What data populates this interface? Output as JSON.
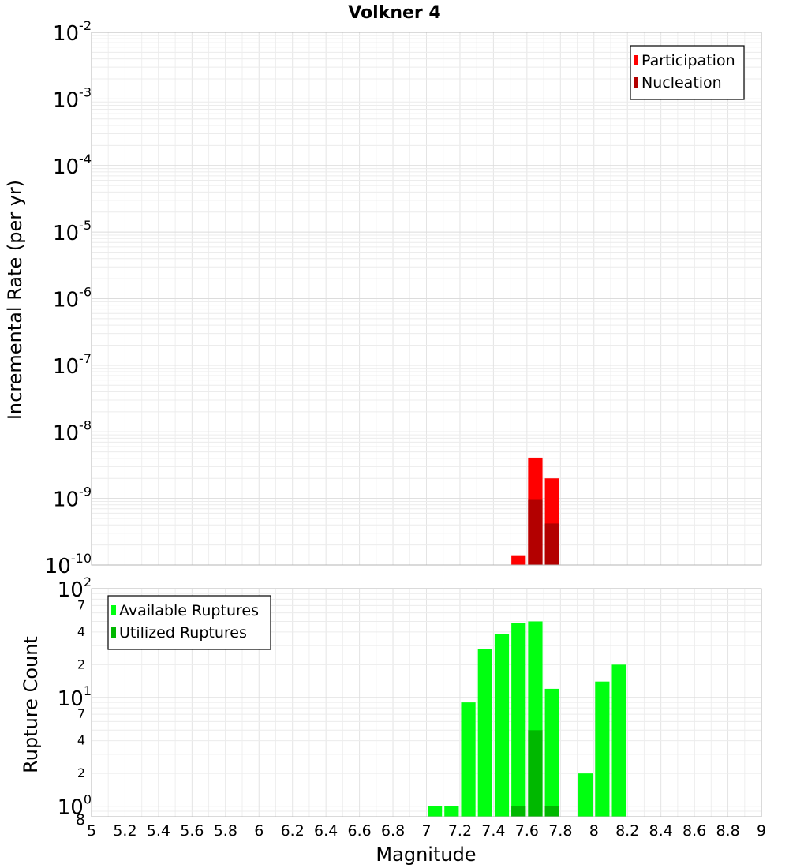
{
  "chart_data": [
    {
      "type": "bar",
      "title": "Volkner 4",
      "ylabel": "Incremental Rate (per yr)",
      "yscale": "log",
      "ylim": [
        1e-10,
        0.01
      ],
      "xlim": [
        5,
        9
      ],
      "bar_width": 0.1,
      "grid": true,
      "legend_position": "top-right",
      "y_ticks": [
        {
          "base": "10",
          "exp": "-10",
          "value": 1e-10
        },
        {
          "base": "10",
          "exp": "-9",
          "value": 1e-09
        },
        {
          "base": "10",
          "exp": "-8",
          "value": 1e-08
        },
        {
          "base": "10",
          "exp": "-7",
          "value": 1e-07
        },
        {
          "base": "10",
          "exp": "-6",
          "value": 1e-06
        },
        {
          "base": "10",
          "exp": "-5",
          "value": 1e-05
        },
        {
          "base": "10",
          "exp": "-4",
          "value": 0.0001
        },
        {
          "base": "10",
          "exp": "-3",
          "value": 0.001
        },
        {
          "base": "10",
          "exp": "-2",
          "value": 0.01
        }
      ],
      "series": [
        {
          "name": "Participation",
          "color": "#ff0000",
          "x": [
            7.55,
            7.65,
            7.75
          ],
          "values": [
            1.4e-10,
            4.1e-09,
            2e-09
          ]
        },
        {
          "name": "Nucleation",
          "color": "#b30000",
          "x": [
            7.65,
            7.75
          ],
          "values": [
            9.5e-10,
            4.2e-10
          ]
        }
      ]
    },
    {
      "type": "bar",
      "xlabel": "Magnitude",
      "ylabel": "Rupture Count",
      "yscale": "log",
      "ylim": [
        0.8,
        100
      ],
      "xlim": [
        5,
        9
      ],
      "bar_width": 0.1,
      "grid": true,
      "legend_position": "top-left",
      "x_tick_labels": [
        "5",
        "5.2",
        "5.4",
        "5.6",
        "5.8",
        "6",
        "6.2",
        "6.4",
        "6.6",
        "6.8",
        "7",
        "7.2",
        "7.4",
        "7.6",
        "7.8",
        "8",
        "8.2",
        "8.4",
        "8.6",
        "8.8",
        "9"
      ],
      "y_major_ticks": [
        {
          "base": "10",
          "exp": "0",
          "value": 1
        },
        {
          "base": "10",
          "exp": "1",
          "value": 10
        },
        {
          "base": "10",
          "exp": "2",
          "value": 100
        }
      ],
      "y_minor_ticks": [
        {
          "label": "8",
          "value": 0.8
        },
        {
          "label": "2",
          "value": 2
        },
        {
          "label": "4",
          "value": 4
        },
        {
          "label": "7",
          "value": 7
        },
        {
          "label": "2",
          "value": 20
        },
        {
          "label": "4",
          "value": 40
        },
        {
          "label": "7",
          "value": 70
        }
      ],
      "series": [
        {
          "name": "Available Ruptures",
          "color": "#00ff10",
          "x": [
            7.05,
            7.15,
            7.25,
            7.35,
            7.45,
            7.55,
            7.65,
            7.75,
            7.95,
            8.05,
            8.15
          ],
          "values": [
            1,
            1,
            9,
            28,
            38,
            48,
            50,
            12,
            2,
            14,
            20
          ]
        },
        {
          "name": "Utilized Ruptures",
          "color": "#00b800",
          "x": [
            7.55,
            7.65,
            7.75
          ],
          "values": [
            1,
            5,
            1
          ]
        }
      ]
    }
  ]
}
